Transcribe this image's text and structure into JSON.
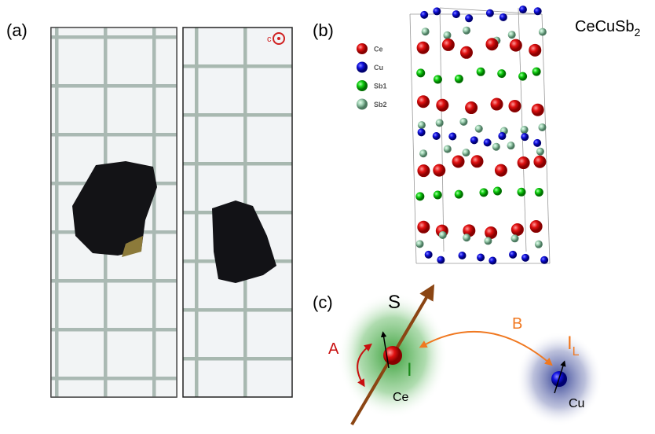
{
  "panels": {
    "a": {
      "label": "(a)",
      "axis_label": "c"
    },
    "b": {
      "label": "(b)",
      "formula": {
        "base": "CeCuSb",
        "sub": "2"
      },
      "legend": [
        "Ce",
        "Cu",
        "Sb1",
        "Sb2"
      ]
    },
    "c": {
      "label": "(c)",
      "spin": "S",
      "coupling_a": "A",
      "coupling_b": "B",
      "nuclear_spin": "I",
      "ligand_spin": {
        "base": "I",
        "sub": "L"
      },
      "ce_atom": "Ce",
      "cu_atom": "Cu"
    }
  }
}
